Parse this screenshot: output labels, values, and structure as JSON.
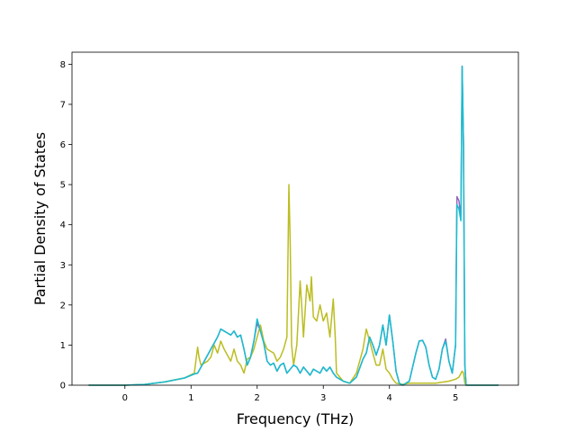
{
  "chart_data": {
    "type": "line",
    "title": "",
    "xlabel": "Frequency (THz)",
    "ylabel": "Partial Density of States",
    "xlim": [
      -0.8,
      5.95
    ],
    "ylim": [
      0,
      8.3
    ],
    "xticks": [
      0,
      1,
      2,
      3,
      4,
      5
    ],
    "yticks": [
      0,
      1,
      2,
      3,
      4,
      5,
      6,
      7,
      8
    ],
    "grid": false,
    "legend": "none",
    "series": [
      {
        "color": "#9467bd",
        "points": [
          [
            -0.55,
            0
          ],
          [
            0,
            0
          ],
          [
            0.3,
            0.02
          ],
          [
            0.6,
            0.08
          ],
          [
            0.9,
            0.18
          ],
          [
            1.05,
            0.28
          ],
          [
            1.1,
            0.3
          ],
          [
            1.2,
            0.6
          ],
          [
            1.3,
            0.9
          ],
          [
            1.4,
            1.2
          ],
          [
            1.45,
            1.4
          ],
          [
            1.5,
            1.35
          ],
          [
            1.55,
            1.3
          ],
          [
            1.6,
            1.25
          ],
          [
            1.65,
            1.35
          ],
          [
            1.7,
            1.2
          ],
          [
            1.75,
            1.25
          ],
          [
            1.8,
            0.9
          ],
          [
            1.85,
            0.5
          ],
          [
            1.9,
            0.7
          ],
          [
            1.95,
            1.1
          ],
          [
            2.0,
            1.55
          ],
          [
            2.05,
            1.35
          ],
          [
            2.1,
            1.05
          ],
          [
            2.15,
            0.6
          ],
          [
            2.2,
            0.5
          ],
          [
            2.25,
            0.55
          ],
          [
            2.3,
            0.35
          ],
          [
            2.35,
            0.5
          ],
          [
            2.4,
            0.55
          ],
          [
            2.45,
            0.3
          ],
          [
            2.5,
            0.4
          ],
          [
            2.55,
            0.5
          ],
          [
            2.6,
            0.45
          ],
          [
            2.65,
            0.3
          ],
          [
            2.7,
            0.45
          ],
          [
            2.75,
            0.35
          ],
          [
            2.8,
            0.25
          ],
          [
            2.85,
            0.4
          ],
          [
            2.9,
            0.35
          ],
          [
            2.95,
            0.3
          ],
          [
            3.0,
            0.45
          ],
          [
            3.05,
            0.35
          ],
          [
            3.1,
            0.45
          ],
          [
            3.15,
            0.3
          ],
          [
            3.2,
            0.2
          ],
          [
            3.3,
            0.1
          ],
          [
            3.4,
            0.05
          ],
          [
            3.5,
            0.2
          ],
          [
            3.6,
            0.65
          ],
          [
            3.65,
            0.8
          ],
          [
            3.7,
            1.2
          ],
          [
            3.75,
            1.0
          ],
          [
            3.8,
            0.75
          ],
          [
            3.85,
            1.0
          ],
          [
            3.9,
            1.5
          ],
          [
            3.95,
            1.0
          ],
          [
            4.0,
            1.75
          ],
          [
            4.05,
            1.1
          ],
          [
            4.1,
            0.35
          ],
          [
            4.15,
            0.05
          ],
          [
            4.2,
            0.0
          ],
          [
            4.3,
            0.1
          ],
          [
            4.4,
            0.8
          ],
          [
            4.45,
            1.1
          ],
          [
            4.5,
            1.12
          ],
          [
            4.55,
            0.95
          ],
          [
            4.6,
            0.5
          ],
          [
            4.65,
            0.2
          ],
          [
            4.7,
            0.15
          ],
          [
            4.75,
            0.4
          ],
          [
            4.8,
            0.9
          ],
          [
            4.85,
            1.15
          ],
          [
            4.9,
            0.6
          ],
          [
            4.95,
            0.3
          ],
          [
            5.0,
            1.0
          ],
          [
            5.02,
            4.7
          ],
          [
            5.05,
            4.6
          ],
          [
            5.08,
            4.2
          ],
          [
            5.1,
            7.95
          ],
          [
            5.12,
            6.0
          ],
          [
            5.14,
            0.5
          ],
          [
            5.16,
            0
          ],
          [
            5.65,
            0
          ]
        ]
      },
      {
        "color": "#bcbd22",
        "points": [
          [
            -0.55,
            0
          ],
          [
            0,
            0
          ],
          [
            0.3,
            0.02
          ],
          [
            0.6,
            0.08
          ],
          [
            0.9,
            0.18
          ],
          [
            1.05,
            0.3
          ],
          [
            1.1,
            0.95
          ],
          [
            1.12,
            0.7
          ],
          [
            1.15,
            0.5
          ],
          [
            1.25,
            0.6
          ],
          [
            1.3,
            0.7
          ],
          [
            1.35,
            1.0
          ],
          [
            1.4,
            0.8
          ],
          [
            1.45,
            1.1
          ],
          [
            1.5,
            0.9
          ],
          [
            1.55,
            0.75
          ],
          [
            1.6,
            0.6
          ],
          [
            1.65,
            0.9
          ],
          [
            1.7,
            0.6
          ],
          [
            1.75,
            0.5
          ],
          [
            1.8,
            0.3
          ],
          [
            1.85,
            0.65
          ],
          [
            1.9,
            0.7
          ],
          [
            1.95,
            0.9
          ],
          [
            2.0,
            1.2
          ],
          [
            2.05,
            1.5
          ],
          [
            2.1,
            1.1
          ],
          [
            2.15,
            0.9
          ],
          [
            2.2,
            0.85
          ],
          [
            2.25,
            0.8
          ],
          [
            2.3,
            0.6
          ],
          [
            2.35,
            0.7
          ],
          [
            2.4,
            0.9
          ],
          [
            2.45,
            1.2
          ],
          [
            2.48,
            5.0
          ],
          [
            2.5,
            3.5
          ],
          [
            2.52,
            1.0
          ],
          [
            2.55,
            0.5
          ],
          [
            2.6,
            1.0
          ],
          [
            2.65,
            2.6
          ],
          [
            2.68,
            1.8
          ],
          [
            2.7,
            1.2
          ],
          [
            2.75,
            2.5
          ],
          [
            2.8,
            2.1
          ],
          [
            2.82,
            2.7
          ],
          [
            2.85,
            1.7
          ],
          [
            2.9,
            1.6
          ],
          [
            2.95,
            2.0
          ],
          [
            3.0,
            1.6
          ],
          [
            3.05,
            1.8
          ],
          [
            3.1,
            1.2
          ],
          [
            3.15,
            2.15
          ],
          [
            3.18,
            1.2
          ],
          [
            3.2,
            0.3
          ],
          [
            3.3,
            0.1
          ],
          [
            3.4,
            0.05
          ],
          [
            3.5,
            0.3
          ],
          [
            3.6,
            0.9
          ],
          [
            3.65,
            1.4
          ],
          [
            3.7,
            1.1
          ],
          [
            3.75,
            0.8
          ],
          [
            3.8,
            0.5
          ],
          [
            3.85,
            0.5
          ],
          [
            3.9,
            0.9
          ],
          [
            3.95,
            0.4
          ],
          [
            4.0,
            0.3
          ],
          [
            4.05,
            0.15
          ],
          [
            4.1,
            0.05
          ],
          [
            4.2,
            0.02
          ],
          [
            4.3,
            0.05
          ],
          [
            4.5,
            0.05
          ],
          [
            4.7,
            0.05
          ],
          [
            4.9,
            0.1
          ],
          [
            5.0,
            0.15
          ],
          [
            5.05,
            0.2
          ],
          [
            5.1,
            0.35
          ],
          [
            5.12,
            0.3
          ],
          [
            5.14,
            0.05
          ],
          [
            5.16,
            0
          ],
          [
            5.65,
            0
          ]
        ]
      },
      {
        "color": "#17becf",
        "points": [
          [
            -0.55,
            0
          ],
          [
            0,
            0
          ],
          [
            0.3,
            0.02
          ],
          [
            0.6,
            0.08
          ],
          [
            0.9,
            0.18
          ],
          [
            1.05,
            0.28
          ],
          [
            1.1,
            0.3
          ],
          [
            1.2,
            0.6
          ],
          [
            1.3,
            0.9
          ],
          [
            1.4,
            1.2
          ],
          [
            1.45,
            1.4
          ],
          [
            1.5,
            1.35
          ],
          [
            1.55,
            1.3
          ],
          [
            1.6,
            1.25
          ],
          [
            1.65,
            1.35
          ],
          [
            1.7,
            1.2
          ],
          [
            1.75,
            1.25
          ],
          [
            1.8,
            0.9
          ],
          [
            1.85,
            0.5
          ],
          [
            1.9,
            0.7
          ],
          [
            1.95,
            1.1
          ],
          [
            2.0,
            1.65
          ],
          [
            2.05,
            1.35
          ],
          [
            2.1,
            1.05
          ],
          [
            2.15,
            0.6
          ],
          [
            2.2,
            0.5
          ],
          [
            2.25,
            0.55
          ],
          [
            2.3,
            0.35
          ],
          [
            2.35,
            0.5
          ],
          [
            2.4,
            0.55
          ],
          [
            2.45,
            0.3
          ],
          [
            2.5,
            0.4
          ],
          [
            2.55,
            0.5
          ],
          [
            2.6,
            0.45
          ],
          [
            2.65,
            0.3
          ],
          [
            2.7,
            0.45
          ],
          [
            2.75,
            0.35
          ],
          [
            2.8,
            0.25
          ],
          [
            2.85,
            0.4
          ],
          [
            2.9,
            0.35
          ],
          [
            2.95,
            0.3
          ],
          [
            3.0,
            0.45
          ],
          [
            3.05,
            0.35
          ],
          [
            3.1,
            0.45
          ],
          [
            3.15,
            0.3
          ],
          [
            3.2,
            0.2
          ],
          [
            3.3,
            0.1
          ],
          [
            3.4,
            0.05
          ],
          [
            3.5,
            0.2
          ],
          [
            3.6,
            0.65
          ],
          [
            3.65,
            0.8
          ],
          [
            3.7,
            1.2
          ],
          [
            3.75,
            1.0
          ],
          [
            3.8,
            0.75
          ],
          [
            3.85,
            1.0
          ],
          [
            3.9,
            1.5
          ],
          [
            3.95,
            1.0
          ],
          [
            4.0,
            1.75
          ],
          [
            4.05,
            1.1
          ],
          [
            4.1,
            0.35
          ],
          [
            4.15,
            0.05
          ],
          [
            4.2,
            0.0
          ],
          [
            4.3,
            0.1
          ],
          [
            4.4,
            0.8
          ],
          [
            4.45,
            1.1
          ],
          [
            4.5,
            1.12
          ],
          [
            4.55,
            0.95
          ],
          [
            4.6,
            0.5
          ],
          [
            4.65,
            0.2
          ],
          [
            4.7,
            0.15
          ],
          [
            4.75,
            0.4
          ],
          [
            4.8,
            0.9
          ],
          [
            4.85,
            1.1
          ],
          [
            4.9,
            0.6
          ],
          [
            4.95,
            0.3
          ],
          [
            5.0,
            1.0
          ],
          [
            5.02,
            4.5
          ],
          [
            5.05,
            4.4
          ],
          [
            5.08,
            4.1
          ],
          [
            5.1,
            7.95
          ],
          [
            5.12,
            6.0
          ],
          [
            5.14,
            0.5
          ],
          [
            5.16,
            0
          ],
          [
            5.65,
            0
          ]
        ]
      }
    ]
  }
}
